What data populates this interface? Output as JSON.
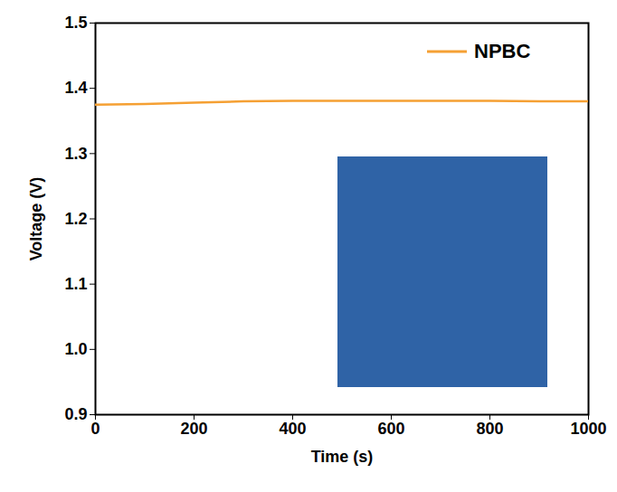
{
  "chart_data": {
    "type": "line",
    "x_label": "Time (s)",
    "y_label": "Voltage (V)",
    "x": [
      0,
      100,
      200,
      300,
      400,
      500,
      600,
      700,
      800,
      900,
      1000
    ],
    "series": [
      {
        "name": "NPBC",
        "color": "#f5a033",
        "line_style": "solid",
        "values": [
          1.375,
          1.376,
          1.378,
          1.38,
          1.381,
          1.381,
          1.381,
          1.381,
          1.381,
          1.38,
          1.38
        ]
      }
    ],
    "xlim": [
      0,
      1000
    ],
    "xticks": [
      0,
      200,
      400,
      600,
      800,
      1000
    ],
    "ylim": [
      0.9,
      1.5
    ],
    "yticks": [
      0.9,
      {
        "value": 1,
        "label": "1.0"
      },
      1.1,
      1.2,
      1.3,
      1.4,
      1.5
    ],
    "grid": false,
    "legend": "top-right"
  }
}
